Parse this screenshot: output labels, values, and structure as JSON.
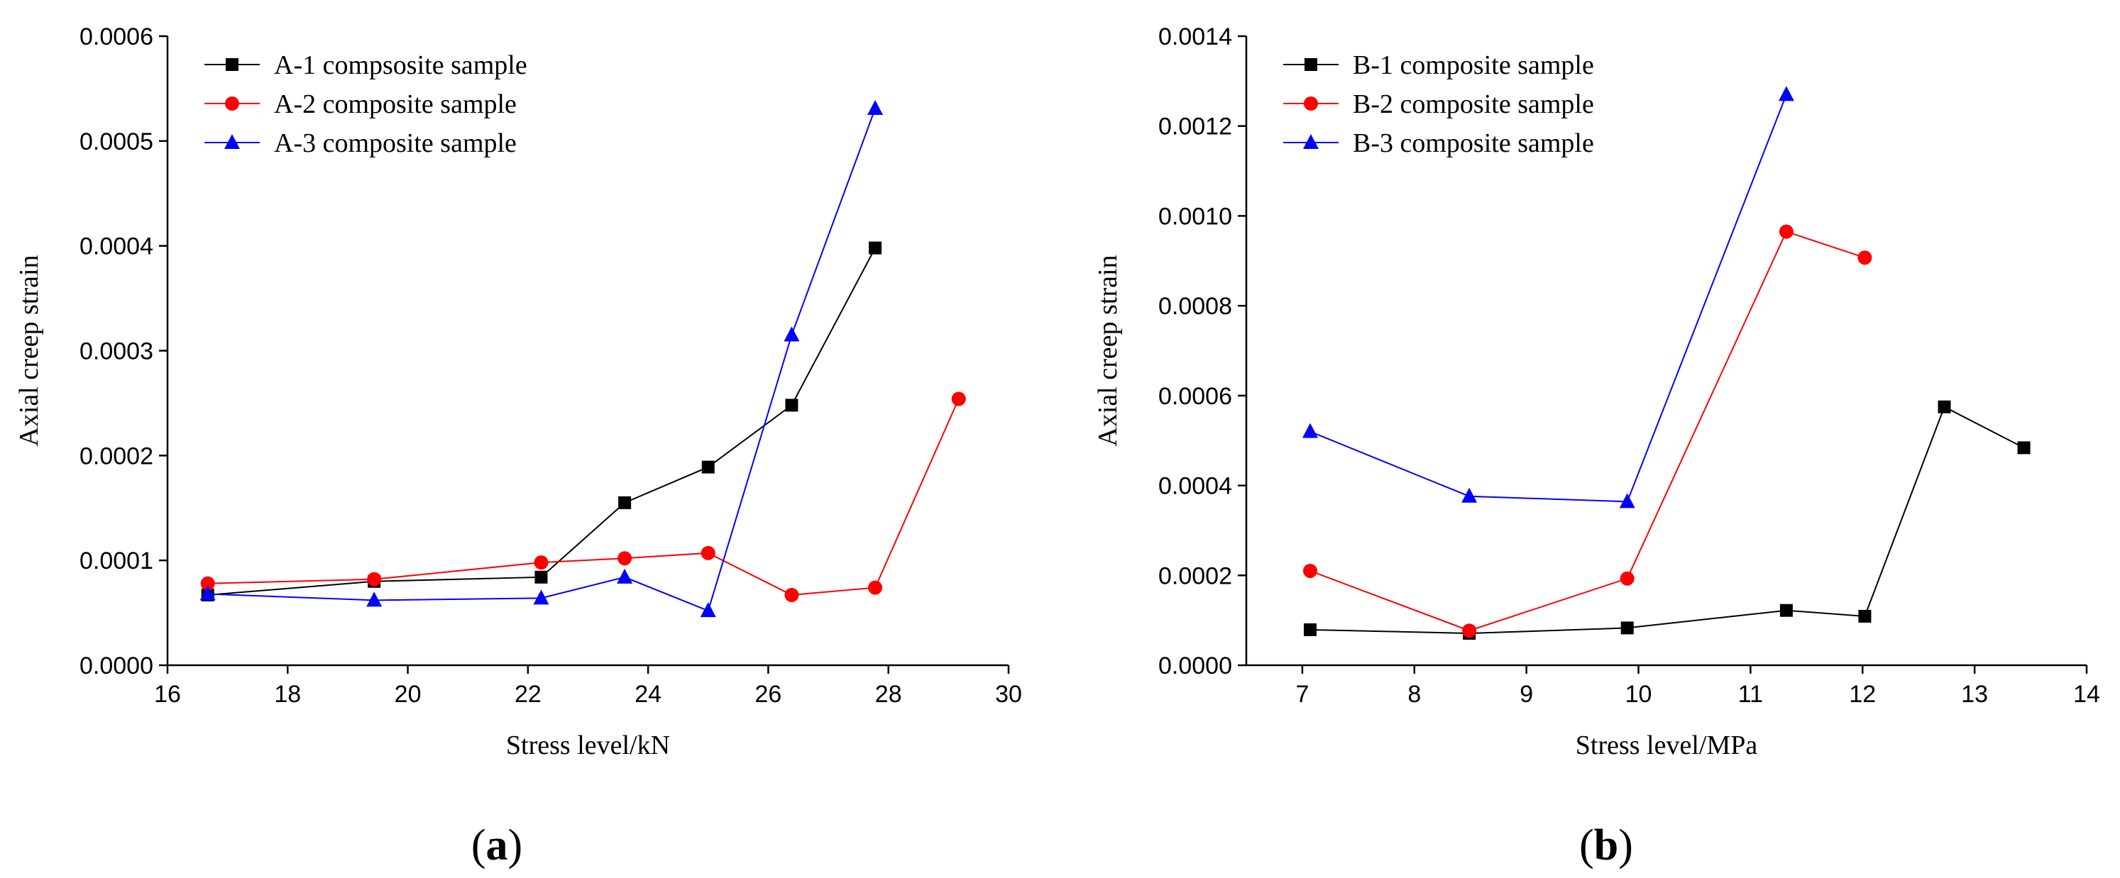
{
  "chart_data": [
    {
      "type": "line",
      "panel_label": "a",
      "xlabel": "Stress level/kN",
      "ylabel": "Axial creep strain",
      "xlim": [
        16,
        30
      ],
      "ylim": [
        0,
        0.0006
      ],
      "xticks": [
        16,
        18,
        20,
        22,
        24,
        26,
        28,
        30
      ],
      "yticks": [
        0,
        0.0001,
        0.0002,
        0.0003,
        0.0004,
        0.0005,
        0.0006
      ],
      "xtick_labels": [
        "16",
        "18",
        "20",
        "22",
        "24",
        "26",
        "28",
        "30"
      ],
      "ytick_labels": [
        "0.0000",
        "0.0001",
        "0.0002",
        "0.0003",
        "0.0004",
        "0.0005",
        "0.0006"
      ],
      "grid": false,
      "legend_position": "top-left",
      "series": [
        {
          "name": "A-1 compsosite sample",
          "color": "#000000",
          "marker": "square",
          "x": [
            16.67,
            19.44,
            22.22,
            23.61,
            25.0,
            26.39,
            27.78
          ],
          "y": [
            6.7e-05,
            8e-05,
            8.4e-05,
            0.000155,
            0.000189,
            0.000248,
            0.000398
          ]
        },
        {
          "name": "A-2 composite sample",
          "color": "#ff0000",
          "marker": "circle",
          "x": [
            16.67,
            19.44,
            22.22,
            23.61,
            25.0,
            26.39,
            27.78,
            29.17
          ],
          "y": [
            7.8e-05,
            8.2e-05,
            9.8e-05,
            0.000102,
            0.000107,
            6.7e-05,
            7.4e-05,
            0.000254
          ]
        },
        {
          "name": "A-3 composite sample",
          "color": "#0000ff",
          "marker": "triangle",
          "x": [
            16.67,
            19.44,
            22.22,
            23.61,
            25.0,
            26.39,
            27.78
          ],
          "y": [
            6.8e-05,
            6.2e-05,
            6.4e-05,
            8.4e-05,
            5.2e-05,
            0.000315,
            0.000531
          ]
        }
      ]
    },
    {
      "type": "line",
      "panel_label": "b",
      "xlabel": "Stress level/MPa",
      "ylabel": "Axial creep strain",
      "xlim": [
        6.5,
        14
      ],
      "ylim": [
        0,
        0.0014
      ],
      "xticks": [
        7,
        8,
        9,
        10,
        11,
        12,
        13,
        14
      ],
      "yticks": [
        0,
        0.0002,
        0.0004,
        0.0006,
        0.0008,
        0.001,
        0.0012,
        0.0014
      ],
      "xtick_labels": [
        "7",
        "8",
        "9",
        "10",
        "11",
        "12",
        "13",
        "14"
      ],
      "ytick_labels": [
        "0.0000",
        "0.0002",
        "0.0004",
        "0.0006",
        "0.0008",
        "0.0010",
        "0.0012",
        "0.0014"
      ],
      "grid": false,
      "legend_position": "top-left",
      "series": [
        {
          "name": "B-1 composite sample",
          "color": "#000000",
          "marker": "square",
          "x": [
            7.07,
            8.49,
            9.9,
            11.32,
            12.02,
            12.73,
            13.44
          ],
          "y": [
            7.9e-05,
            7.1e-05,
            8.3e-05,
            0.000122,
            0.000109,
            0.000575,
            0.000484
          ]
        },
        {
          "name": "B-2 composite sample",
          "color": "#ff0000",
          "marker": "circle",
          "x": [
            7.07,
            8.49,
            9.9,
            11.32,
            12.02
          ],
          "y": [
            0.00021,
            7.7e-05,
            0.000193,
            0.000965,
            0.000907
          ]
        },
        {
          "name": "B-3 composite sample",
          "color": "#0000ff",
          "marker": "triangle",
          "x": [
            7.07,
            8.49,
            9.9,
            11.32
          ],
          "y": [
            0.00052,
            0.000376,
            0.000364,
            0.00127
          ]
        }
      ]
    }
  ]
}
